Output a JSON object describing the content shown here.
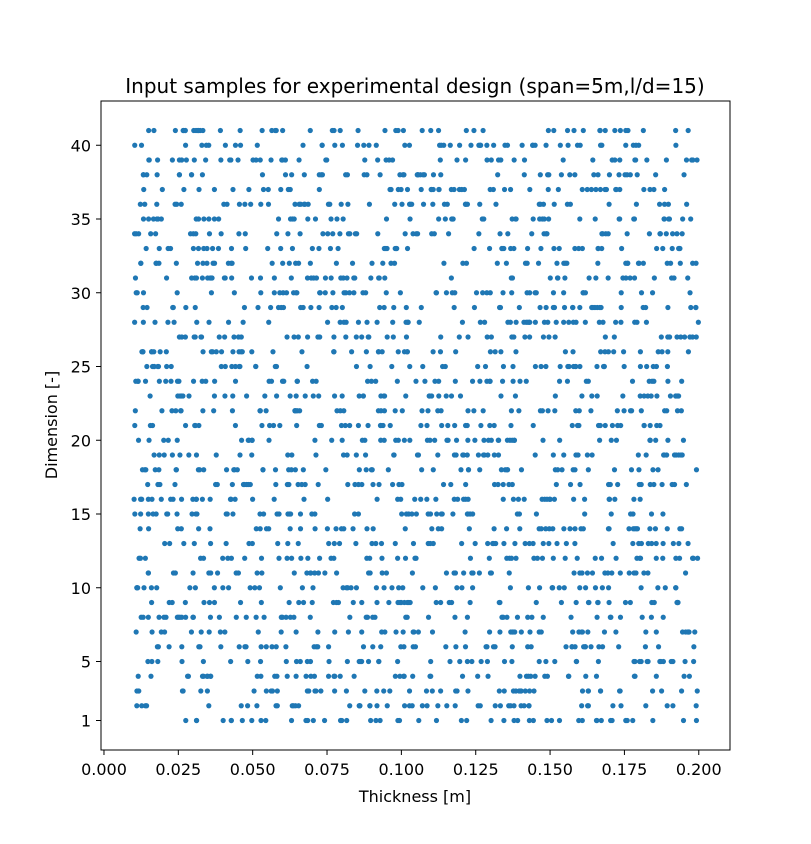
{
  "chart_data": {
    "type": "scatter",
    "title": "Input samples for experimental design (span=5m,l/d=15)",
    "xlabel": "Thickness [m]",
    "ylabel": "Dimension [-]",
    "xlim": [
      -0.001,
      0.2105
    ],
    "ylim": [
      -1.0,
      43.0
    ],
    "xticks": [
      "0.000",
      "0.025",
      "0.050",
      "0.075",
      "0.100",
      "0.125",
      "0.150",
      "0.175",
      "0.200"
    ],
    "xtick_values": [
      0.0,
      0.025,
      0.05,
      0.075,
      0.1,
      0.125,
      0.15,
      0.175,
      0.2
    ],
    "yticks": [
      "1",
      "5",
      "10",
      "15",
      "20",
      "25",
      "30",
      "35",
      "40"
    ],
    "ytick_values": [
      1,
      5,
      10,
      15,
      20,
      25,
      30,
      35,
      40
    ],
    "grid": false,
    "legend": "none",
    "marker_color": "#1f77b4",
    "series": [
      {
        "dimensions_from": 1,
        "dimensions_to": 41,
        "samples_per_dimension": 50,
        "x_min": 0.01,
        "x_max": 0.2
      }
    ]
  }
}
